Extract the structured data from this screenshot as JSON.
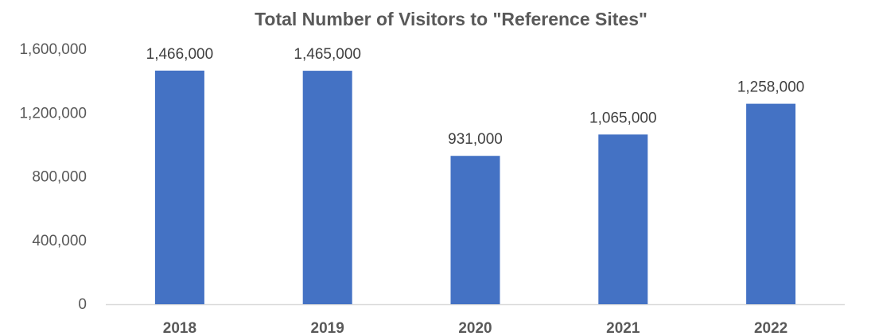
{
  "chart_data": {
    "type": "bar",
    "title": "Total Number of Visitors to \"Reference Sites\"",
    "xlabel": "",
    "ylabel": "",
    "categories": [
      "2018",
      "2019",
      "2020",
      "2021",
      "2022"
    ],
    "values": [
      1466000,
      1465000,
      931000,
      1065000,
      1258000
    ],
    "data_labels": [
      "1,466,000",
      "1,465,000",
      "931,000",
      "1,065,000",
      "1,258,000"
    ],
    "yticks": [
      0,
      400000,
      800000,
      1200000,
      1600000
    ],
    "ytick_labels": [
      "0",
      "400,000",
      "800,000",
      "1,200,000",
      "1,600,000"
    ],
    "ylim": [
      0,
      1600000
    ],
    "grid": false,
    "legend": "none",
    "bar_color": "#4472C4",
    "axis_color": "#D9D9D9"
  }
}
